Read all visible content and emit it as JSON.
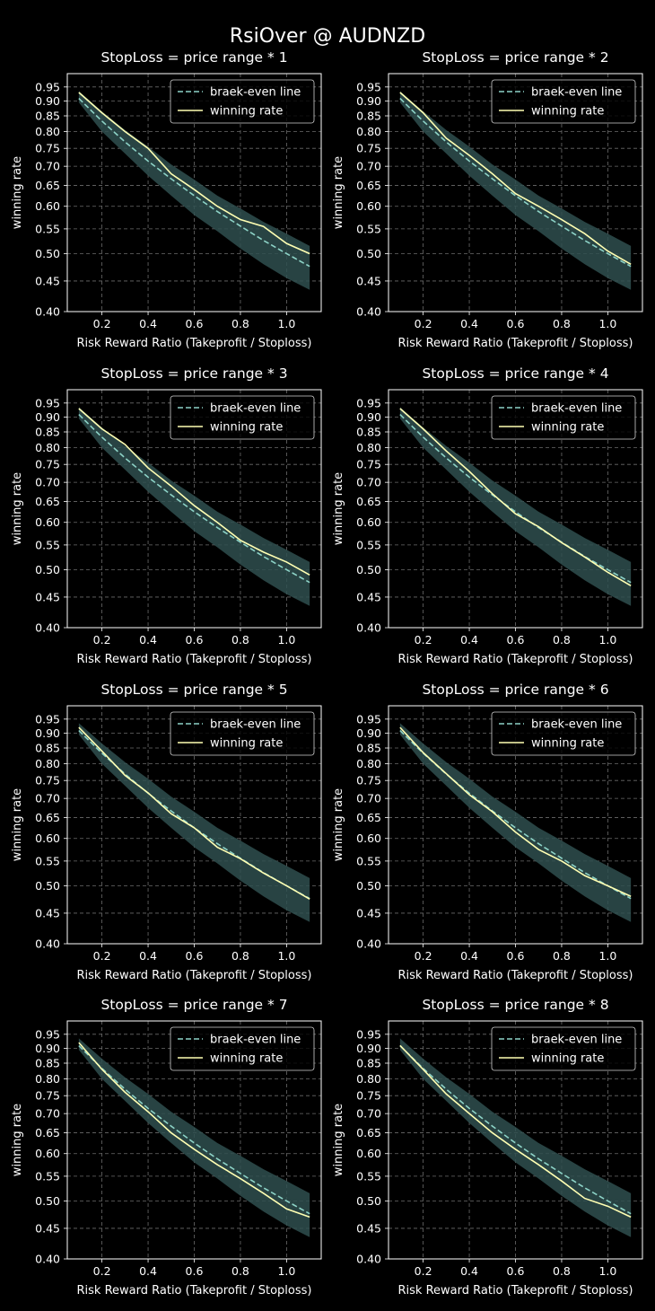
{
  "figure": {
    "title": "RsiOver @ AUDNZD"
  },
  "colors": {
    "background": "#000000",
    "axes": "#ffffff",
    "grid": "#6b6b6b",
    "breakeven": "#8dd3c7",
    "winning": "#ffffb3",
    "band": "#2f4f4f"
  },
  "chart_data": [
    {
      "type": "line",
      "title": "StopLoss = price range * 1",
      "xlabel": "Risk Reward Ratio (Takeprofit / Stoploss)",
      "ylabel": "winning rate",
      "yscale": "log",
      "xlim": [
        0.05,
        1.15
      ],
      "ylim": [
        0.4,
        1.0
      ],
      "xticks": [
        "0.2",
        "0.4",
        "0.6",
        "0.8",
        "1.0"
      ],
      "yticks": [
        "0.40",
        "0.45",
        "0.50",
        "0.55",
        "0.60",
        "0.65",
        "0.70",
        "0.75",
        "0.80",
        "0.85",
        "0.90",
        "0.95"
      ],
      "grid": true,
      "legend": "upper right",
      "x": [
        0.1,
        0.2,
        0.3,
        0.4,
        0.5,
        0.6,
        0.7,
        0.8,
        0.9,
        1.0,
        1.1
      ],
      "band": {
        "lower": [
          0.895,
          0.8,
          0.735,
          0.675,
          0.625,
          0.58,
          0.545,
          0.51,
          0.48,
          0.455,
          0.435
        ],
        "upper": [
          0.935,
          0.865,
          0.805,
          0.755,
          0.705,
          0.665,
          0.625,
          0.595,
          0.565,
          0.54,
          0.515
        ]
      },
      "series": [
        {
          "name": "braek-even line",
          "style": "dashed",
          "values": [
            0.909,
            0.833,
            0.769,
            0.714,
            0.667,
            0.625,
            0.588,
            0.556,
            0.526,
            0.5,
            0.476
          ]
        },
        {
          "name": "winning rate",
          "style": "solid",
          "values": [
            0.93,
            0.86,
            0.8,
            0.75,
            0.68,
            0.64,
            0.6,
            0.57,
            0.555,
            0.52,
            0.5
          ]
        }
      ]
    },
    {
      "type": "line",
      "title": "StopLoss = price range * 2",
      "xlabel": "Risk Reward Ratio (Takeprofit / Stoploss)",
      "ylabel": "winning rate",
      "yscale": "log",
      "xlim": [
        0.05,
        1.15
      ],
      "ylim": [
        0.4,
        1.0
      ],
      "xticks": [
        "0.2",
        "0.4",
        "0.6",
        "0.8",
        "1.0"
      ],
      "yticks": [
        "0.40",
        "0.45",
        "0.50",
        "0.55",
        "0.60",
        "0.65",
        "0.70",
        "0.75",
        "0.80",
        "0.85",
        "0.90",
        "0.95"
      ],
      "grid": true,
      "legend": "upper right",
      "x": [
        0.1,
        0.2,
        0.3,
        0.4,
        0.5,
        0.6,
        0.7,
        0.8,
        0.9,
        1.0,
        1.1
      ],
      "band": {
        "lower": [
          0.895,
          0.8,
          0.735,
          0.675,
          0.625,
          0.58,
          0.545,
          0.51,
          0.48,
          0.455,
          0.435
        ],
        "upper": [
          0.935,
          0.865,
          0.805,
          0.755,
          0.705,
          0.665,
          0.625,
          0.595,
          0.565,
          0.54,
          0.515
        ]
      },
      "series": [
        {
          "name": "braek-even line",
          "style": "dashed",
          "values": [
            0.909,
            0.833,
            0.769,
            0.714,
            0.667,
            0.625,
            0.588,
            0.556,
            0.526,
            0.5,
            0.476
          ]
        },
        {
          "name": "winning rate",
          "style": "solid",
          "values": [
            0.93,
            0.86,
            0.78,
            0.73,
            0.68,
            0.63,
            0.6,
            0.57,
            0.54,
            0.505,
            0.48
          ]
        }
      ]
    },
    {
      "type": "line",
      "title": "StopLoss = price range * 3",
      "xlabel": "Risk Reward Ratio (Takeprofit / Stoploss)",
      "ylabel": "winning rate",
      "yscale": "log",
      "xlim": [
        0.05,
        1.15
      ],
      "ylim": [
        0.4,
        1.0
      ],
      "xticks": [
        "0.2",
        "0.4",
        "0.6",
        "0.8",
        "1.0"
      ],
      "yticks": [
        "0.40",
        "0.45",
        "0.50",
        "0.55",
        "0.60",
        "0.65",
        "0.70",
        "0.75",
        "0.80",
        "0.85",
        "0.90",
        "0.95"
      ],
      "grid": true,
      "legend": "upper right",
      "x": [
        0.1,
        0.2,
        0.3,
        0.4,
        0.5,
        0.6,
        0.7,
        0.8,
        0.9,
        1.0,
        1.1
      ],
      "band": {
        "lower": [
          0.895,
          0.8,
          0.735,
          0.675,
          0.625,
          0.58,
          0.545,
          0.51,
          0.48,
          0.455,
          0.435
        ],
        "upper": [
          0.935,
          0.865,
          0.805,
          0.755,
          0.705,
          0.665,
          0.625,
          0.595,
          0.565,
          0.54,
          0.515
        ]
      },
      "series": [
        {
          "name": "braek-even line",
          "style": "dashed",
          "values": [
            0.909,
            0.833,
            0.769,
            0.714,
            0.667,
            0.625,
            0.588,
            0.556,
            0.526,
            0.5,
            0.476
          ]
        },
        {
          "name": "winning rate",
          "style": "solid",
          "values": [
            0.93,
            0.86,
            0.81,
            0.74,
            0.69,
            0.64,
            0.6,
            0.56,
            0.535,
            0.515,
            0.49
          ]
        }
      ]
    },
    {
      "type": "line",
      "title": "StopLoss = price range * 4",
      "xlabel": "Risk Reward Ratio (Takeprofit / Stoploss)",
      "ylabel": "winning rate",
      "yscale": "log",
      "xlim": [
        0.05,
        1.15
      ],
      "ylim": [
        0.4,
        1.0
      ],
      "xticks": [
        "0.2",
        "0.4",
        "0.6",
        "0.8",
        "1.0"
      ],
      "yticks": [
        "0.40",
        "0.45",
        "0.50",
        "0.55",
        "0.60",
        "0.65",
        "0.70",
        "0.75",
        "0.80",
        "0.85",
        "0.90",
        "0.95"
      ],
      "grid": true,
      "legend": "upper right",
      "x": [
        0.1,
        0.2,
        0.3,
        0.4,
        0.5,
        0.6,
        0.7,
        0.8,
        0.9,
        1.0,
        1.1
      ],
      "band": {
        "lower": [
          0.895,
          0.8,
          0.735,
          0.675,
          0.625,
          0.58,
          0.545,
          0.51,
          0.48,
          0.455,
          0.435
        ],
        "upper": [
          0.935,
          0.865,
          0.805,
          0.755,
          0.705,
          0.665,
          0.625,
          0.595,
          0.565,
          0.54,
          0.515
        ]
      },
      "series": [
        {
          "name": "braek-even line",
          "style": "dashed",
          "values": [
            0.909,
            0.833,
            0.769,
            0.714,
            0.667,
            0.625,
            0.588,
            0.556,
            0.526,
            0.5,
            0.476
          ]
        },
        {
          "name": "winning rate",
          "style": "solid",
          "values": [
            0.93,
            0.86,
            0.79,
            0.73,
            0.67,
            0.62,
            0.59,
            0.555,
            0.525,
            0.495,
            0.47
          ]
        }
      ]
    },
    {
      "type": "line",
      "title": "StopLoss = price range * 5",
      "xlabel": "Risk Reward Ratio (Takeprofit / Stoploss)",
      "ylabel": "winning rate",
      "yscale": "log",
      "xlim": [
        0.05,
        1.15
      ],
      "ylim": [
        0.4,
        1.0
      ],
      "xticks": [
        "0.2",
        "0.4",
        "0.6",
        "0.8",
        "1.0"
      ],
      "yticks": [
        "0.40",
        "0.45",
        "0.50",
        "0.55",
        "0.60",
        "0.65",
        "0.70",
        "0.75",
        "0.80",
        "0.85",
        "0.90",
        "0.95"
      ],
      "grid": true,
      "legend": "upper right",
      "x": [
        0.1,
        0.2,
        0.3,
        0.4,
        0.5,
        0.6,
        0.7,
        0.8,
        0.9,
        1.0,
        1.1
      ],
      "band": {
        "lower": [
          0.895,
          0.8,
          0.735,
          0.675,
          0.625,
          0.58,
          0.545,
          0.51,
          0.48,
          0.455,
          0.435
        ],
        "upper": [
          0.935,
          0.865,
          0.805,
          0.755,
          0.705,
          0.665,
          0.625,
          0.595,
          0.565,
          0.54,
          0.515
        ]
      },
      "series": [
        {
          "name": "braek-even line",
          "style": "dashed",
          "values": [
            0.909,
            0.833,
            0.769,
            0.714,
            0.667,
            0.625,
            0.588,
            0.556,
            0.526,
            0.5,
            0.476
          ]
        },
        {
          "name": "winning rate",
          "style": "solid",
          "values": [
            0.92,
            0.84,
            0.765,
            0.715,
            0.66,
            0.625,
            0.58,
            0.555,
            0.525,
            0.5,
            0.475
          ]
        }
      ]
    },
    {
      "type": "line",
      "title": "StopLoss = price range * 6",
      "xlabel": "Risk Reward Ratio (Takeprofit / Stoploss)",
      "ylabel": "winning rate",
      "yscale": "log",
      "xlim": [
        0.05,
        1.15
      ],
      "ylim": [
        0.4,
        1.0
      ],
      "xticks": [
        "0.2",
        "0.4",
        "0.6",
        "0.8",
        "1.0"
      ],
      "yticks": [
        "0.40",
        "0.45",
        "0.50",
        "0.55",
        "0.60",
        "0.65",
        "0.70",
        "0.75",
        "0.80",
        "0.85",
        "0.90",
        "0.95"
      ],
      "grid": true,
      "legend": "upper right",
      "x": [
        0.1,
        0.2,
        0.3,
        0.4,
        0.5,
        0.6,
        0.7,
        0.8,
        0.9,
        1.0,
        1.1
      ],
      "band": {
        "lower": [
          0.895,
          0.8,
          0.735,
          0.675,
          0.625,
          0.58,
          0.545,
          0.51,
          0.48,
          0.455,
          0.435
        ],
        "upper": [
          0.935,
          0.865,
          0.805,
          0.755,
          0.705,
          0.665,
          0.625,
          0.595,
          0.565,
          0.54,
          0.515
        ]
      },
      "series": [
        {
          "name": "braek-even line",
          "style": "dashed",
          "values": [
            0.909,
            0.833,
            0.769,
            0.714,
            0.667,
            0.625,
            0.588,
            0.556,
            0.526,
            0.5,
            0.476
          ]
        },
        {
          "name": "winning rate",
          "style": "solid",
          "values": [
            0.92,
            0.835,
            0.77,
            0.71,
            0.665,
            0.615,
            0.575,
            0.55,
            0.52,
            0.5,
            0.48
          ]
        }
      ]
    },
    {
      "type": "line",
      "title": "StopLoss = price range * 7",
      "xlabel": "Risk Reward Ratio (Takeprofit / Stoploss)",
      "ylabel": "winning rate",
      "yscale": "log",
      "xlim": [
        0.05,
        1.15
      ],
      "ylim": [
        0.4,
        1.0
      ],
      "xticks": [
        "0.2",
        "0.4",
        "0.6",
        "0.8",
        "1.0"
      ],
      "yticks": [
        "0.40",
        "0.45",
        "0.50",
        "0.55",
        "0.60",
        "0.65",
        "0.70",
        "0.75",
        "0.80",
        "0.85",
        "0.90",
        "0.95"
      ],
      "grid": true,
      "legend": "upper right",
      "x": [
        0.1,
        0.2,
        0.3,
        0.4,
        0.5,
        0.6,
        0.7,
        0.8,
        0.9,
        1.0,
        1.1
      ],
      "band": {
        "lower": [
          0.895,
          0.8,
          0.735,
          0.675,
          0.625,
          0.58,
          0.545,
          0.51,
          0.48,
          0.455,
          0.435
        ],
        "upper": [
          0.935,
          0.865,
          0.805,
          0.755,
          0.705,
          0.665,
          0.625,
          0.595,
          0.565,
          0.54,
          0.515
        ]
      },
      "series": [
        {
          "name": "braek-even line",
          "style": "dashed",
          "values": [
            0.909,
            0.833,
            0.769,
            0.714,
            0.667,
            0.625,
            0.588,
            0.556,
            0.526,
            0.5,
            0.476
          ]
        },
        {
          "name": "winning rate",
          "style": "solid",
          "values": [
            0.92,
            0.83,
            0.76,
            0.705,
            0.65,
            0.61,
            0.575,
            0.545,
            0.515,
            0.485,
            0.47
          ]
        }
      ]
    },
    {
      "type": "line",
      "title": "StopLoss = price range * 8",
      "xlabel": "Risk Reward Ratio (Takeprofit / Stoploss)",
      "ylabel": "winning rate",
      "yscale": "log",
      "xlim": [
        0.05,
        1.15
      ],
      "ylim": [
        0.4,
        1.0
      ],
      "xticks": [
        "0.2",
        "0.4",
        "0.6",
        "0.8",
        "1.0"
      ],
      "yticks": [
        "0.40",
        "0.45",
        "0.50",
        "0.55",
        "0.60",
        "0.65",
        "0.70",
        "0.75",
        "0.80",
        "0.85",
        "0.90",
        "0.95"
      ],
      "grid": true,
      "legend": "upper right",
      "x": [
        0.1,
        0.2,
        0.3,
        0.4,
        0.5,
        0.6,
        0.7,
        0.8,
        0.9,
        1.0,
        1.1
      ],
      "band": {
        "lower": [
          0.895,
          0.8,
          0.735,
          0.675,
          0.625,
          0.58,
          0.545,
          0.51,
          0.48,
          0.455,
          0.435
        ],
        "upper": [
          0.935,
          0.865,
          0.805,
          0.755,
          0.705,
          0.665,
          0.625,
          0.595,
          0.565,
          0.54,
          0.515
        ]
      },
      "series": [
        {
          "name": "braek-even line",
          "style": "dashed",
          "values": [
            0.909,
            0.833,
            0.769,
            0.714,
            0.667,
            0.625,
            0.588,
            0.556,
            0.526,
            0.5,
            0.476
          ]
        },
        {
          "name": "winning rate",
          "style": "solid",
          "values": [
            0.91,
            0.83,
            0.755,
            0.7,
            0.65,
            0.61,
            0.575,
            0.54,
            0.505,
            0.49,
            0.47
          ]
        }
      ]
    }
  ]
}
